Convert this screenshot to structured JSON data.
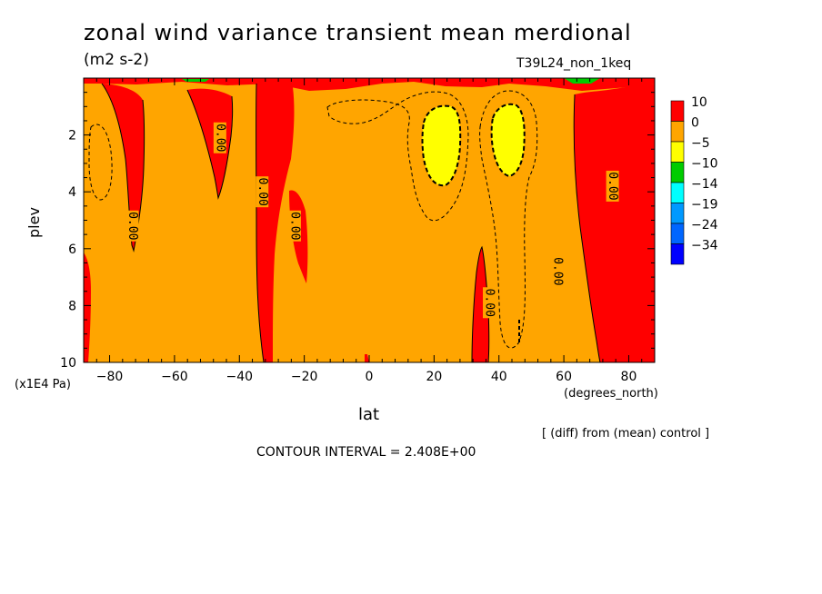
{
  "header": {
    "title": "zonal wind variance transient mean merdional",
    "units": "(m2 s-2)",
    "run": "T39L24_non_1keq"
  },
  "footer": {
    "diff_note": "[ (diff) from (mean) control ]",
    "contour_interval": "CONTOUR INTERVAL = 2.408E+00"
  },
  "chart_data": {
    "type": "contour",
    "xlabel": "lat",
    "xunit": "(degrees_north)",
    "ylabel": "plev",
    "yunit": "(x1E4 Pa)",
    "xlim": [
      -88,
      88
    ],
    "ylim": [
      10,
      0
    ],
    "x_ticks": [
      -80,
      -60,
      -40,
      -20,
      0,
      20,
      40,
      60,
      80
    ],
    "y_ticks": [
      2,
      4,
      6,
      8,
      10
    ],
    "legend": {
      "position": "right",
      "levels": [
        "10",
        "0",
        "-5",
        "-10",
        "-14",
        "-19",
        "-24",
        "-34"
      ],
      "colors": [
        "#ff0000",
        "#ffa500",
        "#ffff00",
        "#00cc00",
        "#00ffff",
        "#0099ff",
        "#0066ff",
        "#0000ff"
      ]
    },
    "contour_labels": [
      {
        "text": "0.00",
        "lat": -73,
        "plev": 5.2
      },
      {
        "text": "0.00",
        "lat": -46,
        "plev": 2.1
      },
      {
        "text": "0.00",
        "lat": -33,
        "plev": 4.0
      },
      {
        "text": "0.00",
        "lat": -23,
        "plev": 5.2
      },
      {
        "text": "0.00",
        "lat": 37,
        "plev": 7.9
      },
      {
        "text": "0.00",
        "lat": 58,
        "plev": 6.8
      },
      {
        "text": "0.00",
        "lat": 75,
        "plev": 3.8
      }
    ]
  }
}
